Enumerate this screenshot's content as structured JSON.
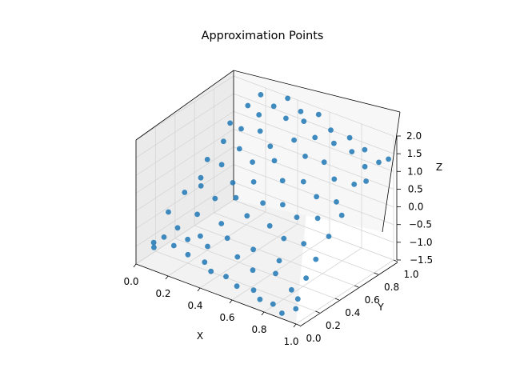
{
  "chart_data": {
    "type": "scatter",
    "projection": "3d",
    "title": "Approximation Points",
    "xlabel": "X",
    "ylabel": "Y",
    "zlabel": "Z",
    "xlim": [
      0.0,
      1.0
    ],
    "ylim": [
      0.0,
      1.0
    ],
    "zlim": [
      -1.5,
      2.0
    ],
    "xticks": [
      "0.0",
      "0.2",
      "0.4",
      "0.6",
      "0.8",
      "1.0"
    ],
    "yticks": [
      "0.0",
      "0.2",
      "0.4",
      "0.6",
      "0.8",
      "1.0"
    ],
    "zticks": [
      "−1.5",
      "−1.0",
      "−0.5",
      "0.0",
      "0.5",
      "1.0",
      "1.5",
      "2.0"
    ],
    "grid": true,
    "legend": "none",
    "point_color": "#1f77b4",
    "points": [
      [
        0.08,
        0.05,
        -0.85
      ],
      [
        0.12,
        0.09,
        -0.7
      ],
      [
        0.1,
        0.02,
        -0.9
      ],
      [
        0.2,
        0.06,
        -0.75
      ],
      [
        0.25,
        0.12,
        -0.6
      ],
      [
        0.3,
        0.04,
        -0.8
      ],
      [
        0.38,
        0.08,
        -0.95
      ],
      [
        0.45,
        0.03,
        -1.0
      ],
      [
        0.52,
        0.07,
        -1.1
      ],
      [
        0.6,
        0.05,
        -1.2
      ],
      [
        0.68,
        0.09,
        -1.25
      ],
      [
        0.75,
        0.04,
        -1.3
      ],
      [
        0.82,
        0.06,
        -1.35
      ],
      [
        0.9,
        0.02,
        -1.4
      ],
      [
        0.95,
        0.08,
        -1.3
      ],
      [
        0.15,
        0.18,
        -0.55
      ],
      [
        0.28,
        0.2,
        -0.6
      ],
      [
        0.35,
        0.16,
        -0.7
      ],
      [
        0.5,
        0.22,
        -0.85
      ],
      [
        0.62,
        0.18,
        -0.95
      ],
      [
        0.72,
        0.25,
        -1.0
      ],
      [
        0.85,
        0.2,
        -1.15
      ],
      [
        0.92,
        0.15,
        -1.2
      ],
      [
        0.4,
        0.28,
        -0.6
      ],
      [
        0.55,
        0.3,
        -0.7
      ],
      [
        0.7,
        0.32,
        -0.8
      ],
      [
        0.88,
        0.3,
        -0.95
      ],
      [
        0.2,
        0.3,
        -0.3
      ],
      [
        0.32,
        0.35,
        -0.45
      ],
      [
        0.05,
        0.25,
        -0.4
      ],
      [
        0.06,
        0.4,
        -0.1
      ],
      [
        0.1,
        0.5,
        0.2
      ],
      [
        0.08,
        0.6,
        0.5
      ],
      [
        0.12,
        0.7,
        0.9
      ],
      [
        0.1,
        0.8,
        1.2
      ],
      [
        0.15,
        0.9,
        1.6
      ],
      [
        0.2,
        0.95,
        1.9
      ],
      [
        0.25,
        0.85,
        1.6
      ],
      [
        0.3,
        0.92,
        1.8
      ],
      [
        0.35,
        0.98,
        2.0
      ],
      [
        0.4,
        0.88,
        1.7
      ],
      [
        0.45,
        0.95,
        1.85
      ],
      [
        0.5,
        0.9,
        1.75
      ],
      [
        0.55,
        0.97,
        1.9
      ],
      [
        0.6,
        0.85,
        1.55
      ],
      [
        0.65,
        0.93,
        1.7
      ],
      [
        0.7,
        0.88,
        1.5
      ],
      [
        0.75,
        0.96,
        1.6
      ],
      [
        0.8,
        0.9,
        1.4
      ],
      [
        0.85,
        0.95,
        1.45
      ],
      [
        0.9,
        0.87,
        1.2
      ],
      [
        0.95,
        0.93,
        1.3
      ],
      [
        0.98,
        0.98,
        1.35
      ],
      [
        0.2,
        0.75,
        1.3
      ],
      [
        0.3,
        0.78,
        1.35
      ],
      [
        0.4,
        0.72,
        1.2
      ],
      [
        0.5,
        0.8,
        1.4
      ],
      [
        0.6,
        0.75,
        1.2
      ],
      [
        0.7,
        0.78,
        1.15
      ],
      [
        0.8,
        0.72,
        0.95
      ],
      [
        0.9,
        0.76,
        0.9
      ],
      [
        0.95,
        0.8,
        1.0
      ],
      [
        0.25,
        0.65,
        1.0
      ],
      [
        0.35,
        0.62,
        0.85
      ],
      [
        0.45,
        0.68,
        0.95
      ],
      [
        0.55,
        0.6,
        0.7
      ],
      [
        0.65,
        0.65,
        0.75
      ],
      [
        0.75,
        0.62,
        0.55
      ],
      [
        0.85,
        0.66,
        0.5
      ],
      [
        0.92,
        0.6,
        0.35
      ],
      [
        0.2,
        0.55,
        0.65
      ],
      [
        0.3,
        0.5,
        0.4
      ],
      [
        0.4,
        0.55,
        0.5
      ],
      [
        0.5,
        0.48,
        0.2
      ],
      [
        0.6,
        0.52,
        0.25
      ],
      [
        0.7,
        0.5,
        0.1
      ],
      [
        0.8,
        0.55,
        0.15
      ],
      [
        0.9,
        0.5,
        -0.1
      ],
      [
        0.15,
        0.42,
        0.2
      ],
      [
        0.25,
        0.4,
        0.05
      ],
      [
        0.35,
        0.45,
        0.15
      ],
      [
        0.45,
        0.4,
        -0.1
      ],
      [
        0.58,
        0.42,
        -0.2
      ],
      [
        0.68,
        0.4,
        -0.35
      ],
      [
        0.78,
        0.44,
        -0.4
      ],
      [
        0.88,
        0.4,
        -0.6
      ]
    ]
  }
}
